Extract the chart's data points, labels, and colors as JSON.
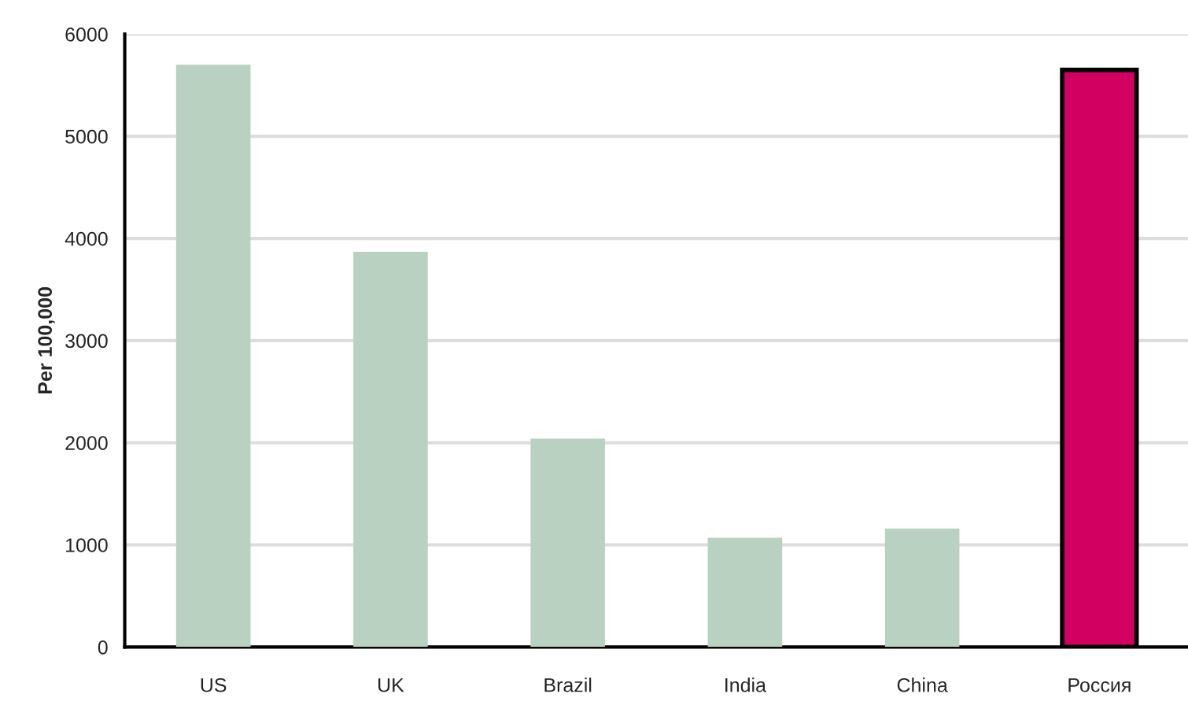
{
  "chart_data": {
    "type": "bar",
    "ylabel": "Per 100,000",
    "categories": [
      "US",
      "UK",
      "Brazil",
      "India",
      "China",
      "Россия"
    ],
    "values": [
      5700,
      3870,
      2040,
      1070,
      1160,
      5650
    ],
    "colors": [
      "#b8d1c0",
      "#b8d1c0",
      "#b8d1c0",
      "#b8d1c0",
      "#b8d1c0",
      "#d20060"
    ],
    "ylim": [
      0,
      6000
    ],
    "yticks": [
      0,
      1000,
      2000,
      3000,
      4000,
      5000,
      6000
    ],
    "grid": "y",
    "legend": false
  }
}
